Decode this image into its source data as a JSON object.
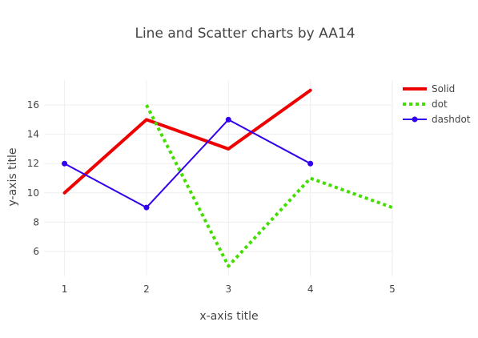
{
  "chart_data": {
    "type": "line",
    "title": "Line and Scatter charts by AA14",
    "xlabel": "x-axis title",
    "ylabel": "y-axis title",
    "xlim": [
      0.75,
      5
    ],
    "ylim": [
      4.3,
      17.7
    ],
    "x_ticks": [
      1,
      2,
      3,
      4,
      5
    ],
    "y_ticks": [
      6,
      8,
      10,
      12,
      14,
      16
    ],
    "grid": true,
    "legend_position": "top-right",
    "series": [
      {
        "name": "Solid",
        "x": [
          1,
          2,
          3,
          4
        ],
        "y": [
          10,
          15,
          13,
          17
        ],
        "color": "#ee0000",
        "style": "solid",
        "markers": false
      },
      {
        "name": "dot",
        "x": [
          2,
          3,
          4,
          5
        ],
        "y": [
          16,
          5,
          11,
          9
        ],
        "color": "#44dd00",
        "style": "dot",
        "markers": false
      },
      {
        "name": "dashdot",
        "x": [
          1,
          2,
          3,
          4
        ],
        "y": [
          12,
          9,
          15,
          12
        ],
        "color": "#3300ee",
        "style": "solid",
        "markers": true
      }
    ]
  }
}
